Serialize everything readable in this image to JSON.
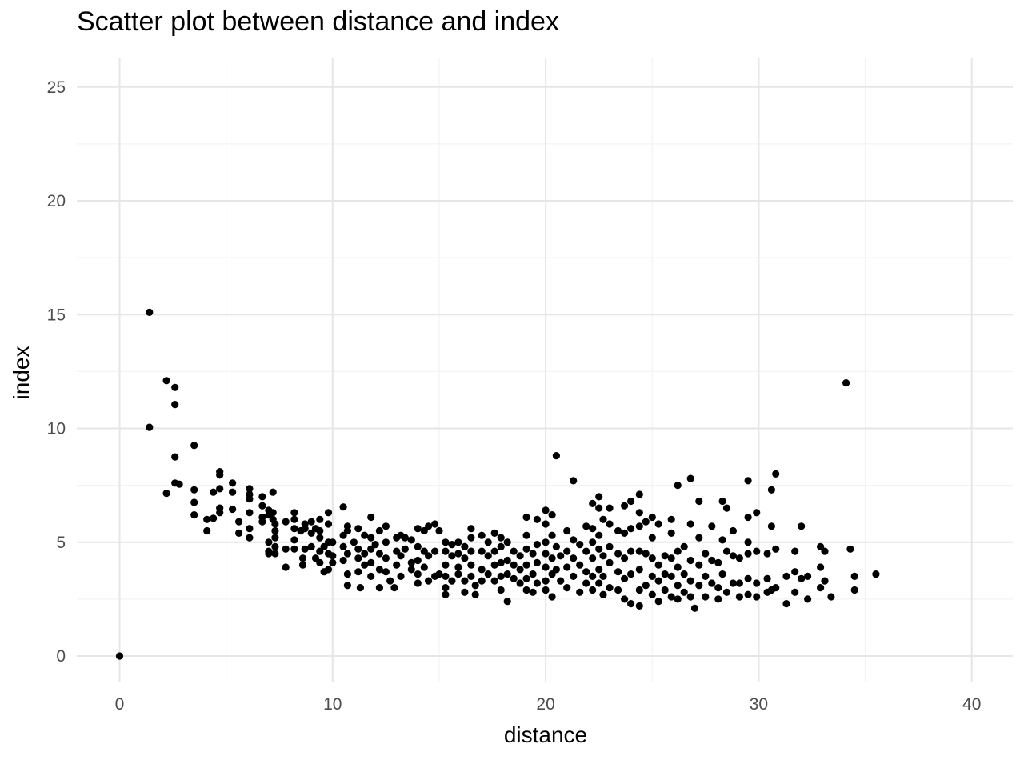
{
  "chart_data": {
    "type": "scatter",
    "title": "Scatter plot between distance and index",
    "xlabel": "distance",
    "ylabel": "index",
    "xlim": [
      -2,
      42
    ],
    "ylim": [
      -1,
      25.5
    ],
    "x_ticks": [
      0,
      10,
      20,
      30,
      40
    ],
    "y_ticks": [
      0,
      5,
      10,
      15,
      20,
      25
    ],
    "x_tick_labels": [
      "0",
      "10",
      "20",
      "30",
      "40"
    ],
    "y_tick_labels": [
      "0",
      "5",
      "10",
      "15",
      "20",
      "25"
    ],
    "grid": true,
    "legend": "none",
    "point_color": "#000000",
    "points": [
      [
        0,
        0
      ],
      [
        1.4,
        15.1
      ],
      [
        1.4,
        10.05
      ],
      [
        2.2,
        12.1
      ],
      [
        2.2,
        7.15
      ],
      [
        2.6,
        11.8
      ],
      [
        2.6,
        11.05
      ],
      [
        2.6,
        8.75
      ],
      [
        2.6,
        7.6
      ],
      [
        2.8,
        7.55
      ],
      [
        3.5,
        9.25
      ],
      [
        3.5,
        7.3
      ],
      [
        3.5,
        6.75
      ],
      [
        3.5,
        6.2
      ],
      [
        4.1,
        6.0
      ],
      [
        4.1,
        5.5
      ],
      [
        4.4,
        7.2
      ],
      [
        4.4,
        6.05
      ],
      [
        4.7,
        8.1
      ],
      [
        4.7,
        7.95
      ],
      [
        4.7,
        7.35
      ],
      [
        4.7,
        6.5
      ],
      [
        4.7,
        6.3
      ],
      [
        5.3,
        7.6
      ],
      [
        5.3,
        7.2
      ],
      [
        5.3,
        6.45
      ],
      [
        5.6,
        5.9
      ],
      [
        5.6,
        5.4
      ],
      [
        6.1,
        7.35
      ],
      [
        6.1,
        7.1
      ],
      [
        6.1,
        6.9
      ],
      [
        6.1,
        6.3
      ],
      [
        6.1,
        5.6
      ],
      [
        6.1,
        5.2
      ],
      [
        6.7,
        7.0
      ],
      [
        6.7,
        6.6
      ],
      [
        6.7,
        6.1
      ],
      [
        6.7,
        5.9
      ],
      [
        7.0,
        6.4
      ],
      [
        7.0,
        6.2
      ],
      [
        7.0,
        5.0
      ],
      [
        7.0,
        4.6
      ],
      [
        7.0,
        4.5
      ],
      [
        7.2,
        7.2
      ],
      [
        7.2,
        6.3
      ],
      [
        7.2,
        6.0
      ],
      [
        7.3,
        5.8
      ],
      [
        7.3,
        5.5
      ],
      [
        7.3,
        5.2
      ],
      [
        7.3,
        4.8
      ],
      [
        7.3,
        4.5
      ],
      [
        7.8,
        3.9
      ],
      [
        7.8,
        4.7
      ],
      [
        7.8,
        5.9
      ],
      [
        8.2,
        6.3
      ],
      [
        8.2,
        6.0
      ],
      [
        8.2,
        5.6
      ],
      [
        8.2,
        5.1
      ],
      [
        8.2,
        4.7
      ],
      [
        8.5,
        5.5
      ],
      [
        8.6,
        4.3
      ],
      [
        8.6,
        4.0
      ],
      [
        8.7,
        4.7
      ],
      [
        8.7,
        5.8
      ],
      [
        8.7,
        5.6
      ],
      [
        9.0,
        5.9
      ],
      [
        9.0,
        5.4
      ],
      [
        9.0,
        4.8
      ],
      [
        9.2,
        5.6
      ],
      [
        9.2,
        4.3
      ],
      [
        9.4,
        6.0
      ],
      [
        9.4,
        5.5
      ],
      [
        9.4,
        5.2
      ],
      [
        9.4,
        4.6
      ],
      [
        9.4,
        4.1
      ],
      [
        9.6,
        4.8
      ],
      [
        9.6,
        3.7
      ],
      [
        9.8,
        6.3
      ],
      [
        9.8,
        5.8
      ],
      [
        9.8,
        5.0
      ],
      [
        9.8,
        4.5
      ],
      [
        9.8,
        3.8
      ],
      [
        10.0,
        5.0
      ],
      [
        10.0,
        4.4
      ],
      [
        10.0,
        4.1
      ],
      [
        10.5,
        6.55
      ],
      [
        10.5,
        5.3
      ],
      [
        10.5,
        4.8
      ],
      [
        10.5,
        4.2
      ],
      [
        10.7,
        5.7
      ],
      [
        10.7,
        5.5
      ],
      [
        10.7,
        4.5
      ],
      [
        10.7,
        3.6
      ],
      [
        10.7,
        3.1
      ],
      [
        11.0,
        5.0
      ],
      [
        11.2,
        5.6
      ],
      [
        11.2,
        4.7
      ],
      [
        11.2,
        4.3
      ],
      [
        11.2,
        3.7
      ],
      [
        11.3,
        3.0
      ],
      [
        11.5,
        5.3
      ],
      [
        11.5,
        4.5
      ],
      [
        11.5,
        4.0
      ],
      [
        11.8,
        6.1
      ],
      [
        11.8,
        5.2
      ],
      [
        11.8,
        4.7
      ],
      [
        11.8,
        4.1
      ],
      [
        11.8,
        3.5
      ],
      [
        12.0,
        4.9
      ],
      [
        12.2,
        5.5
      ],
      [
        12.2,
        4.5
      ],
      [
        12.2,
        3.8
      ],
      [
        12.2,
        3.0
      ],
      [
        12.5,
        5.7
      ],
      [
        12.5,
        5.0
      ],
      [
        12.5,
        4.3
      ],
      [
        12.5,
        3.7
      ],
      [
        12.7,
        3.3
      ],
      [
        12.9,
        3.0
      ],
      [
        13.0,
        5.2
      ],
      [
        13.0,
        4.6
      ],
      [
        13.0,
        4.0
      ],
      [
        13.2,
        5.3
      ],
      [
        13.2,
        4.4
      ],
      [
        13.2,
        3.5
      ],
      [
        13.4,
        5.2
      ],
      [
        13.4,
        4.7
      ],
      [
        13.7,
        5.1
      ],
      [
        13.7,
        4.1
      ],
      [
        13.7,
        3.8
      ],
      [
        14.0,
        5.6
      ],
      [
        14.0,
        4.8
      ],
      [
        14.0,
        4.2
      ],
      [
        14.0,
        3.6
      ],
      [
        14.0,
        3.2
      ],
      [
        14.3,
        5.5
      ],
      [
        14.3,
        4.6
      ],
      [
        14.3,
        3.9
      ],
      [
        14.5,
        5.7
      ],
      [
        14.5,
        4.4
      ],
      [
        14.5,
        3.3
      ],
      [
        14.8,
        5.8
      ],
      [
        14.8,
        4.6
      ],
      [
        14.8,
        3.5
      ],
      [
        15.0,
        5.5
      ],
      [
        15.0,
        3.6
      ],
      [
        15.3,
        5.0
      ],
      [
        15.3,
        4.6
      ],
      [
        15.3,
        4.0
      ],
      [
        15.3,
        3.5
      ],
      [
        15.3,
        3.0
      ],
      [
        15.3,
        2.7
      ],
      [
        15.6,
        4.9
      ],
      [
        15.6,
        4.4
      ],
      [
        15.6,
        3.3
      ],
      [
        15.9,
        5.0
      ],
      [
        15.9,
        4.5
      ],
      [
        15.9,
        3.9
      ],
      [
        15.9,
        3.6
      ],
      [
        16.2,
        4.8
      ],
      [
        16.2,
        4.3
      ],
      [
        16.2,
        3.3
      ],
      [
        16.2,
        2.8
      ],
      [
        16.5,
        5.6
      ],
      [
        16.5,
        5.2
      ],
      [
        16.5,
        4.6
      ],
      [
        16.5,
        4.0
      ],
      [
        16.5,
        3.5
      ],
      [
        16.7,
        3.1
      ],
      [
        16.7,
        2.7
      ],
      [
        17.0,
        5.3
      ],
      [
        17.0,
        4.6
      ],
      [
        17.0,
        3.8
      ],
      [
        17.0,
        3.3
      ],
      [
        17.3,
        5.0
      ],
      [
        17.3,
        4.4
      ],
      [
        17.3,
        3.6
      ],
      [
        17.6,
        5.4
      ],
      [
        17.6,
        4.6
      ],
      [
        17.6,
        4.0
      ],
      [
        17.6,
        3.3
      ],
      [
        17.9,
        5.2
      ],
      [
        17.9,
        4.8
      ],
      [
        17.9,
        4.1
      ],
      [
        17.9,
        3.5
      ],
      [
        17.9,
        2.9
      ],
      [
        18.2,
        5.0
      ],
      [
        18.2,
        4.2
      ],
      [
        18.2,
        3.6
      ],
      [
        18.2,
        2.4
      ],
      [
        18.5,
        4.6
      ],
      [
        18.5,
        4.0
      ],
      [
        18.5,
        3.4
      ],
      [
        18.8,
        4.4
      ],
      [
        18.8,
        3.8
      ],
      [
        18.8,
        3.2
      ],
      [
        19.1,
        6.1
      ],
      [
        19.1,
        5.3
      ],
      [
        19.1,
        4.7
      ],
      [
        19.1,
        4.0
      ],
      [
        19.1,
        3.4
      ],
      [
        19.1,
        2.9
      ],
      [
        19.4,
        4.5
      ],
      [
        19.4,
        3.6
      ],
      [
        19.4,
        2.8
      ],
      [
        19.6,
        6.0
      ],
      [
        19.6,
        4.9
      ],
      [
        19.6,
        4.1
      ],
      [
        19.6,
        3.2
      ],
      [
        20.0,
        6.4
      ],
      [
        20.0,
        5.8
      ],
      [
        20.0,
        5.0
      ],
      [
        20.0,
        4.5
      ],
      [
        20.0,
        3.9
      ],
      [
        20.0,
        3.3
      ],
      [
        20.0,
        2.9
      ],
      [
        20.3,
        6.2
      ],
      [
        20.3,
        5.3
      ],
      [
        20.3,
        4.3
      ],
      [
        20.3,
        3.6
      ],
      [
        20.3,
        2.6
      ],
      [
        20.5,
        8.8
      ],
      [
        20.5,
        4.8
      ],
      [
        20.5,
        3.8
      ],
      [
        20.7,
        4.4
      ],
      [
        20.7,
        3.3
      ],
      [
        21.0,
        5.5
      ],
      [
        21.0,
        4.6
      ],
      [
        21.0,
        3.9
      ],
      [
        21.0,
        3.0
      ],
      [
        21.3,
        7.7
      ],
      [
        21.3,
        5.1
      ],
      [
        21.3,
        4.3
      ],
      [
        21.3,
        3.5
      ],
      [
        21.6,
        4.9
      ],
      [
        21.6,
        4.0
      ],
      [
        21.6,
        2.8
      ],
      [
        21.9,
        5.7
      ],
      [
        21.9,
        4.6
      ],
      [
        21.9,
        3.7
      ],
      [
        21.9,
        3.2
      ],
      [
        22.2,
        6.7
      ],
      [
        22.2,
        5.6
      ],
      [
        22.2,
        5.0
      ],
      [
        22.2,
        4.3
      ],
      [
        22.2,
        3.5
      ],
      [
        22.2,
        2.9
      ],
      [
        22.5,
        7.0
      ],
      [
        22.5,
        6.5
      ],
      [
        22.5,
        5.3
      ],
      [
        22.5,
        4.7
      ],
      [
        22.5,
        3.8
      ],
      [
        22.5,
        3.2
      ],
      [
        22.7,
        6.0
      ],
      [
        22.7,
        4.4
      ],
      [
        22.7,
        3.5
      ],
      [
        22.7,
        2.7
      ],
      [
        23.0,
        6.5
      ],
      [
        23.0,
        5.8
      ],
      [
        23.0,
        4.8
      ],
      [
        23.0,
        4.1
      ],
      [
        23.0,
        3.0
      ],
      [
        23.4,
        5.5
      ],
      [
        23.4,
        4.5
      ],
      [
        23.4,
        3.7
      ],
      [
        23.4,
        2.9
      ],
      [
        23.7,
        6.6
      ],
      [
        23.7,
        5.4
      ],
      [
        23.7,
        4.3
      ],
      [
        23.7,
        3.4
      ],
      [
        23.7,
        2.5
      ],
      [
        24.0,
        6.8
      ],
      [
        24.0,
        5.6
      ],
      [
        24.0,
        4.6
      ],
      [
        24.0,
        3.6
      ],
      [
        24.0,
        2.3
      ],
      [
        24.4,
        7.1
      ],
      [
        24.4,
        6.3
      ],
      [
        24.4,
        5.7
      ],
      [
        24.4,
        4.6
      ],
      [
        24.4,
        3.8
      ],
      [
        24.4,
        2.9
      ],
      [
        24.4,
        2.2
      ],
      [
        24.7,
        5.9
      ],
      [
        24.7,
        4.5
      ],
      [
        24.7,
        3.1
      ],
      [
        25.0,
        6.1
      ],
      [
        25.0,
        5.2
      ],
      [
        25.0,
        4.3
      ],
      [
        25.0,
        3.5
      ],
      [
        25.0,
        2.7
      ],
      [
        25.3,
        5.8
      ],
      [
        25.3,
        4.0
      ],
      [
        25.3,
        3.3
      ],
      [
        25.3,
        2.4
      ],
      [
        25.6,
        4.4
      ],
      [
        25.6,
        3.6
      ],
      [
        25.6,
        2.9
      ],
      [
        25.9,
        6.0
      ],
      [
        25.9,
        5.4
      ],
      [
        25.9,
        4.3
      ],
      [
        25.9,
        3.5
      ],
      [
        25.9,
        2.6
      ],
      [
        26.2,
        7.5
      ],
      [
        26.2,
        4.6
      ],
      [
        26.2,
        3.9
      ],
      [
        26.2,
        3.1
      ],
      [
        26.2,
        2.5
      ],
      [
        26.5,
        4.8
      ],
      [
        26.5,
        3.6
      ],
      [
        26.5,
        2.8
      ],
      [
        26.8,
        7.8
      ],
      [
        26.8,
        5.8
      ],
      [
        26.8,
        4.2
      ],
      [
        26.8,
        3.3
      ],
      [
        26.8,
        2.6
      ],
      [
        27.0,
        2.1
      ],
      [
        27.2,
        6.8
      ],
      [
        27.2,
        5.2
      ],
      [
        27.2,
        4.0
      ],
      [
        27.2,
        3.1
      ],
      [
        27.5,
        4.5
      ],
      [
        27.5,
        3.5
      ],
      [
        27.5,
        2.6
      ],
      [
        27.8,
        5.7
      ],
      [
        27.8,
        4.2
      ],
      [
        27.8,
        3.2
      ],
      [
        28.1,
        4.1
      ],
      [
        28.1,
        3.0
      ],
      [
        28.1,
        2.5
      ],
      [
        28.3,
        6.8
      ],
      [
        28.3,
        5.1
      ],
      [
        28.3,
        3.6
      ],
      [
        28.5,
        6.5
      ],
      [
        28.5,
        4.6
      ],
      [
        28.5,
        2.8
      ],
      [
        28.8,
        5.5
      ],
      [
        28.8,
        4.4
      ],
      [
        28.8,
        3.2
      ],
      [
        29.1,
        4.3
      ],
      [
        29.1,
        3.2
      ],
      [
        29.1,
        2.6
      ],
      [
        29.5,
        7.7
      ],
      [
        29.5,
        6.1
      ],
      [
        29.5,
        5.0
      ],
      [
        29.5,
        4.5
      ],
      [
        29.5,
        3.4
      ],
      [
        29.5,
        2.7
      ],
      [
        29.9,
        6.3
      ],
      [
        29.9,
        4.6
      ],
      [
        29.9,
        3.2
      ],
      [
        29.9,
        2.6
      ],
      [
        30.4,
        4.5
      ],
      [
        30.4,
        3.4
      ],
      [
        30.4,
        2.8
      ],
      [
        30.6,
        7.3
      ],
      [
        30.6,
        5.7
      ],
      [
        30.6,
        2.9
      ],
      [
        30.8,
        8.0
      ],
      [
        30.8,
        4.7
      ],
      [
        30.8,
        3.0
      ],
      [
        31.3,
        3.5
      ],
      [
        31.3,
        2.3
      ],
      [
        31.7,
        4.6
      ],
      [
        31.7,
        3.7
      ],
      [
        31.7,
        2.8
      ],
      [
        32.0,
        5.7
      ],
      [
        32.0,
        3.4
      ],
      [
        32.3,
        3.5
      ],
      [
        32.3,
        2.5
      ],
      [
        32.9,
        4.8
      ],
      [
        32.9,
        3.9
      ],
      [
        32.9,
        3.0
      ],
      [
        33.1,
        4.6
      ],
      [
        33.1,
        3.3
      ],
      [
        33.4,
        2.6
      ],
      [
        34.1,
        12.0
      ],
      [
        34.3,
        4.7
      ],
      [
        34.5,
        3.5
      ],
      [
        34.5,
        2.9
      ],
      [
        35.5,
        3.6
      ]
    ]
  }
}
